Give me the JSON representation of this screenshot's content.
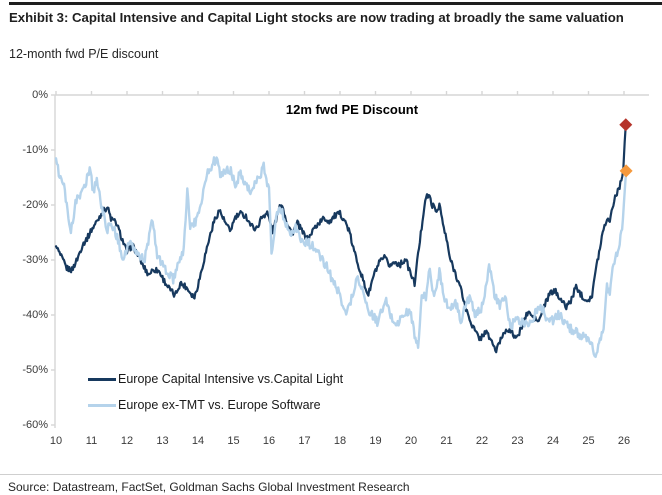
{
  "exhibit": {
    "title": "Exhibit 3: Capital Intensive and Capital Light stocks are now trading at broadly the same valuation",
    "subtitle": "12-month fwd P/E discount",
    "source": "Source: Datastream, FactSet, Goldman Sachs Global Investment Research"
  },
  "chart_data": {
    "type": "line",
    "title": "12m fwd PE Discount",
    "grid": false,
    "legend_position": "bottom-left-inside",
    "axis_color": "#d6d6d6",
    "x_axis": {
      "labels": [
        "10",
        "11",
        "12",
        "13",
        "14",
        "15",
        "16",
        "17",
        "18",
        "19",
        "20",
        "21",
        "22",
        "23",
        "24",
        "25",
        "26"
      ],
      "values": [
        10,
        11,
        12,
        13,
        14,
        15,
        16,
        17,
        18,
        19,
        20,
        21,
        22,
        23,
        24,
        25,
        26
      ],
      "range": [
        10,
        26.6
      ]
    },
    "y_axis": {
      "labels": [
        "0%",
        "-10%",
        "-20%",
        "-30%",
        "-40%",
        "-50%",
        "-60%"
      ],
      "values": [
        0,
        -10,
        -20,
        -30,
        -40,
        -50,
        -60
      ],
      "range": [
        -60,
        0
      ]
    },
    "series": [
      {
        "name": "Europe Capital Intensive vs.Capital Light",
        "color": "#17395E",
        "jitter": 0.55,
        "points": [
          [
            10.0,
            -27.5
          ],
          [
            10.15,
            -29.5
          ],
          [
            10.3,
            -31.5
          ],
          [
            10.45,
            -31.8
          ],
          [
            10.6,
            -29.8
          ],
          [
            10.75,
            -27.2
          ],
          [
            10.9,
            -25.8
          ],
          [
            11.0,
            -24.5
          ],
          [
            11.15,
            -23.0
          ],
          [
            11.3,
            -21.3
          ],
          [
            11.45,
            -20.4
          ],
          [
            11.55,
            -22.5
          ],
          [
            11.7,
            -23.3
          ],
          [
            11.85,
            -26.0
          ],
          [
            12.0,
            -28.6
          ],
          [
            12.15,
            -27.3
          ],
          [
            12.3,
            -29.0
          ],
          [
            12.45,
            -31.0
          ],
          [
            12.6,
            -32.6
          ],
          [
            12.75,
            -31.7
          ],
          [
            12.9,
            -32.0
          ],
          [
            13.05,
            -33.8
          ],
          [
            13.2,
            -35.3
          ],
          [
            13.35,
            -36.5
          ],
          [
            13.5,
            -34.2
          ],
          [
            13.65,
            -34.8
          ],
          [
            13.8,
            -36.0
          ],
          [
            13.9,
            -36.8
          ],
          [
            14.0,
            -34.5
          ],
          [
            14.15,
            -30.5
          ],
          [
            14.3,
            -26.5
          ],
          [
            14.45,
            -23.0
          ],
          [
            14.6,
            -20.9
          ],
          [
            14.75,
            -23.0
          ],
          [
            14.9,
            -24.8
          ],
          [
            15.05,
            -22.3
          ],
          [
            15.2,
            -21.6
          ],
          [
            15.35,
            -22.0
          ],
          [
            15.5,
            -23.8
          ],
          [
            15.65,
            -24.3
          ],
          [
            15.8,
            -22.2
          ],
          [
            15.95,
            -21.3
          ],
          [
            16.1,
            -24.8
          ],
          [
            16.25,
            -21.5
          ],
          [
            16.35,
            -19.6
          ],
          [
            16.5,
            -23.0
          ],
          [
            16.65,
            -25.2
          ],
          [
            16.8,
            -23.3
          ],
          [
            16.95,
            -25.0
          ],
          [
            17.1,
            -26.4
          ],
          [
            17.25,
            -24.4
          ],
          [
            17.4,
            -23.3
          ],
          [
            17.55,
            -22.4
          ],
          [
            17.7,
            -23.0
          ],
          [
            17.85,
            -22.0
          ],
          [
            18.0,
            -21.6
          ],
          [
            18.1,
            -22.4
          ],
          [
            18.25,
            -24.6
          ],
          [
            18.4,
            -28.5
          ],
          [
            18.55,
            -31.5
          ],
          [
            18.7,
            -34.8
          ],
          [
            18.8,
            -36.3
          ],
          [
            18.95,
            -32.8
          ],
          [
            19.1,
            -30.6
          ],
          [
            19.25,
            -29.6
          ],
          [
            19.4,
            -31.0
          ],
          [
            19.55,
            -30.4
          ],
          [
            19.7,
            -30.8
          ],
          [
            19.85,
            -29.8
          ],
          [
            19.95,
            -31.8
          ],
          [
            20.1,
            -34.3
          ],
          [
            20.2,
            -29.0
          ],
          [
            20.3,
            -24.0
          ],
          [
            20.4,
            -18.9
          ],
          [
            20.5,
            -18.2
          ],
          [
            20.6,
            -20.0
          ],
          [
            20.72,
            -21.2
          ],
          [
            20.8,
            -19.8
          ],
          [
            20.9,
            -23.5
          ],
          [
            21.0,
            -26.3
          ],
          [
            21.1,
            -29.8
          ],
          [
            21.25,
            -32.4
          ],
          [
            21.4,
            -35.2
          ],
          [
            21.55,
            -39.0
          ],
          [
            21.7,
            -41.5
          ],
          [
            21.85,
            -43.5
          ],
          [
            21.95,
            -44.3
          ],
          [
            22.1,
            -43.0
          ],
          [
            22.25,
            -44.5
          ],
          [
            22.4,
            -46.6
          ],
          [
            22.55,
            -44.0
          ],
          [
            22.7,
            -42.4
          ],
          [
            22.85,
            -43.4
          ],
          [
            23.0,
            -44.2
          ],
          [
            23.15,
            -41.5
          ],
          [
            23.3,
            -39.4
          ],
          [
            23.45,
            -40.5
          ],
          [
            23.6,
            -41.2
          ],
          [
            23.75,
            -38.5
          ],
          [
            23.9,
            -36.2
          ],
          [
            24.05,
            -35.6
          ],
          [
            24.2,
            -36.8
          ],
          [
            24.35,
            -38.6
          ],
          [
            24.5,
            -37.5
          ],
          [
            24.65,
            -34.8
          ],
          [
            24.8,
            -36.4
          ],
          [
            24.95,
            -37.3
          ],
          [
            25.1,
            -36.6
          ],
          [
            25.2,
            -32.0
          ],
          [
            25.3,
            -28.5
          ],
          [
            25.45,
            -23.3
          ],
          [
            25.6,
            -22.5
          ],
          [
            25.75,
            -18.5
          ],
          [
            25.9,
            -16.2
          ],
          [
            25.98,
            -13.5
          ],
          [
            26.02,
            -8.5
          ],
          [
            26.05,
            -5.4
          ]
        ]
      },
      {
        "name": "Europe ex-TMT vs. Europe Software",
        "color": "#B5D3EB",
        "jitter": 0.85,
        "points": [
          [
            10.0,
            -11.5
          ],
          [
            10.08,
            -14.5
          ],
          [
            10.2,
            -16.0
          ],
          [
            10.3,
            -19.5
          ],
          [
            10.42,
            -25.0
          ],
          [
            10.5,
            -22.0
          ],
          [
            10.6,
            -17.8
          ],
          [
            10.72,
            -18.3
          ],
          [
            10.85,
            -15.5
          ],
          [
            10.95,
            -13.2
          ],
          [
            11.05,
            -17.5
          ],
          [
            11.15,
            -15.2
          ],
          [
            11.3,
            -21.0
          ],
          [
            11.45,
            -24.3
          ],
          [
            11.6,
            -23.8
          ],
          [
            11.75,
            -26.5
          ],
          [
            11.9,
            -29.8
          ],
          [
            12.05,
            -27.0
          ],
          [
            12.2,
            -28.0
          ],
          [
            12.35,
            -29.3
          ],
          [
            12.5,
            -29.8
          ],
          [
            12.65,
            -25.0
          ],
          [
            12.72,
            -22.8
          ],
          [
            12.85,
            -29.0
          ],
          [
            13.0,
            -31.0
          ],
          [
            13.15,
            -32.3
          ],
          [
            13.3,
            -33.6
          ],
          [
            13.45,
            -31.0
          ],
          [
            13.6,
            -28.0
          ],
          [
            13.7,
            -16.8
          ],
          [
            13.78,
            -24.0
          ],
          [
            13.95,
            -23.0
          ],
          [
            14.1,
            -19.0
          ],
          [
            14.25,
            -14.5
          ],
          [
            14.4,
            -12.5
          ],
          [
            14.55,
            -11.5
          ],
          [
            14.65,
            -15.0
          ],
          [
            14.8,
            -13.6
          ],
          [
            14.95,
            -14.0
          ],
          [
            15.05,
            -16.6
          ],
          [
            15.2,
            -14.0
          ],
          [
            15.35,
            -16.2
          ],
          [
            15.5,
            -17.6
          ],
          [
            15.62,
            -15.8
          ],
          [
            15.75,
            -15.2
          ],
          [
            15.85,
            -12.8
          ],
          [
            16.0,
            -17.2
          ],
          [
            16.07,
            -28.6
          ],
          [
            16.2,
            -22.5
          ],
          [
            16.3,
            -20.2
          ],
          [
            16.45,
            -22.8
          ],
          [
            16.6,
            -25.0
          ],
          [
            16.75,
            -24.0
          ],
          [
            16.9,
            -26.4
          ],
          [
            17.05,
            -26.8
          ],
          [
            17.2,
            -27.2
          ],
          [
            17.35,
            -28.6
          ],
          [
            17.5,
            -30.0
          ],
          [
            17.65,
            -31.5
          ],
          [
            17.8,
            -33.8
          ],
          [
            17.95,
            -35.8
          ],
          [
            18.1,
            -38.2
          ],
          [
            18.2,
            -39.7
          ],
          [
            18.35,
            -36.2
          ],
          [
            18.5,
            -33.2
          ],
          [
            18.6,
            -34.5
          ],
          [
            18.75,
            -38.5
          ],
          [
            18.9,
            -40.0
          ],
          [
            19.05,
            -41.2
          ],
          [
            19.2,
            -39.0
          ],
          [
            19.3,
            -37.6
          ],
          [
            19.45,
            -40.5
          ],
          [
            19.6,
            -41.8
          ],
          [
            19.75,
            -40.3
          ],
          [
            19.9,
            -39.5
          ],
          [
            20.0,
            -39.8
          ],
          [
            20.1,
            -43.5
          ],
          [
            20.2,
            -46.2
          ],
          [
            20.3,
            -36.5
          ],
          [
            20.42,
            -36.8
          ],
          [
            20.53,
            -31.4
          ],
          [
            20.65,
            -37.2
          ],
          [
            20.8,
            -32.0
          ],
          [
            20.95,
            -36.8
          ],
          [
            21.1,
            -39.3
          ],
          [
            21.25,
            -37.4
          ],
          [
            21.4,
            -41.0
          ],
          [
            21.52,
            -38.6
          ],
          [
            21.65,
            -36.6
          ],
          [
            21.8,
            -40.3
          ],
          [
            22.0,
            -38.6
          ],
          [
            22.2,
            -31.0
          ],
          [
            22.35,
            -36.2
          ],
          [
            22.5,
            -38.6
          ],
          [
            22.65,
            -36.5
          ],
          [
            22.8,
            -42.4
          ],
          [
            22.95,
            -40.8
          ],
          [
            23.1,
            -41.2
          ],
          [
            23.25,
            -41.4
          ],
          [
            23.4,
            -41.3
          ],
          [
            23.55,
            -39.0
          ],
          [
            23.7,
            -38.8
          ],
          [
            23.85,
            -40.8
          ],
          [
            24.0,
            -41.0
          ],
          [
            24.15,
            -40.0
          ],
          [
            24.3,
            -41.0
          ],
          [
            24.45,
            -42.4
          ],
          [
            24.6,
            -42.8
          ],
          [
            24.75,
            -43.6
          ],
          [
            24.9,
            -44.3
          ],
          [
            25.05,
            -45.0
          ],
          [
            25.2,
            -47.4
          ],
          [
            25.35,
            -44.5
          ],
          [
            25.45,
            -41.0
          ],
          [
            25.52,
            -34.5
          ],
          [
            25.6,
            -36.3
          ],
          [
            25.68,
            -31.5
          ],
          [
            25.78,
            -29.0
          ],
          [
            25.88,
            -27.5
          ],
          [
            25.97,
            -22.5
          ],
          [
            26.02,
            -17.5
          ],
          [
            26.06,
            -13.8
          ]
        ]
      }
    ],
    "markers": [
      {
        "name": "capital-intensive-latest",
        "shape": "diamond",
        "color": "#B5342B",
        "x": 26.05,
        "y": -5.4
      },
      {
        "name": "ex-tmt-latest",
        "shape": "diamond",
        "color": "#F5993D",
        "x": 26.06,
        "y": -13.8
      }
    ]
  }
}
